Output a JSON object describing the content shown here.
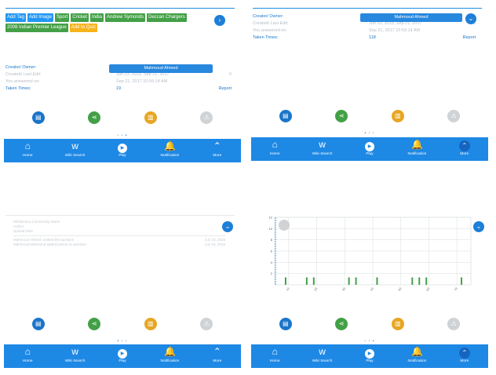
{
  "colors": {
    "accent": "#1e88e5",
    "green": "#43a047",
    "orange": "#f6b31b",
    "muted": "#b5bdc6"
  },
  "tags": [
    {
      "label": "Add Tag",
      "color": "blue"
    },
    {
      "label": "Add Image",
      "color": "blue"
    },
    {
      "label": "Sport",
      "color": "green"
    },
    {
      "label": "Cricket",
      "color": "green"
    },
    {
      "label": "India",
      "color": "green"
    },
    {
      "label": "Andrew Symonds",
      "color": "green"
    },
    {
      "label": "Deccan Chargers",
      "color": "green"
    },
    {
      "label": "2008 Indian Premier League",
      "color": "green"
    },
    {
      "label": "Add to Quiz",
      "color": "orange"
    }
  ],
  "info": {
    "creator_label": "Creator/ Owner:",
    "creator_name": "Mahmoud Ahmed",
    "created_label": "Created/ Last Edit:",
    "created_value": "Jun 23, 2015, Sep 21, 2017",
    "created_count": "6",
    "answered_label": "You answered on:",
    "answered_value": "Sep 21, 2017 10:59:14 AM",
    "taken_label": "Taken Times:",
    "taken_value_1": "19",
    "taken_value_2": "118",
    "report_label": "Report"
  },
  "log": {
    "line1": "Wikifactory Community Name",
    "line2": "Author",
    "line3": "Upload Date",
    "entries": [
      {
        "text": "Mahmoud Ahmed created the question",
        "date": "Jun 23, 2015"
      },
      {
        "text": "Mahmoud Mahmoud added picture to question",
        "date": "Jun 23, 2015"
      }
    ]
  },
  "actions": [
    {
      "icon": "clipboard-icon",
      "color": "blue"
    },
    {
      "icon": "share-icon",
      "color": "green"
    },
    {
      "icon": "stats-icon",
      "color": "yellow"
    },
    {
      "icon": "warning-icon",
      "color": "grey"
    }
  ],
  "nav": [
    {
      "label": "Home",
      "icon": "home-icon"
    },
    {
      "label": "Wiki Search",
      "icon": "wiki-search-icon"
    },
    {
      "label": "Play",
      "icon": "play-icon"
    },
    {
      "label": "Notification",
      "icon": "bell-icon"
    },
    {
      "label": "More",
      "icon": "chevron-up-icon"
    }
  ],
  "chart_data": {
    "type": "bar",
    "yticks": [
      "12",
      "10",
      "8",
      "6",
      "4",
      "2"
    ],
    "ylim": [
      0,
      12
    ],
    "xticks": [
      "1/1",
      "2/1",
      "3/1",
      "4/1",
      "5/1",
      "6/1",
      "7/1"
    ],
    "values": [
      0,
      1,
      0,
      0,
      1,
      1,
      0,
      0,
      0,
      0,
      1,
      1,
      0,
      0,
      1,
      0,
      0,
      0,
      0,
      1,
      1,
      1,
      0,
      0,
      0,
      0,
      1
    ],
    "grid": true
  }
}
